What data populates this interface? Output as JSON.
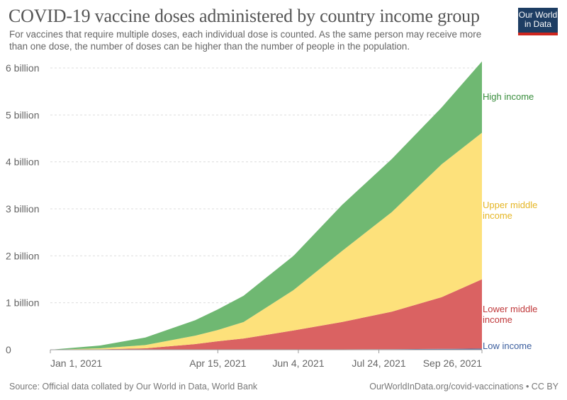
{
  "header": {
    "title": "COVID-19 vaccine doses administered by country income group",
    "subtitle": "For vaccines that require multiple doses, each individual dose is counted. As the same person may receive more than one dose, the number of doses can be higher than the number of people in the population.",
    "logo_text": "Our World in Data"
  },
  "footer": {
    "source": "Source: Official data collated by Our World in Data, World Bank",
    "credit": "OurWorldInData.org/covid-vaccinations • CC BY"
  },
  "chart_data": {
    "type": "area",
    "stacked": true,
    "title": "COVID-19 vaccine doses administered by country income group",
    "x": [
      "2021-01-01",
      "2021-02-01",
      "2021-03-01",
      "2021-04-01",
      "2021-04-15",
      "2021-05-01",
      "2021-06-01",
      "2021-07-01",
      "2021-08-01",
      "2021-09-01",
      "2021-09-26"
    ],
    "xlim": [
      "2021-01-01",
      "2021-09-26"
    ],
    "x_ticks": [
      {
        "date": "2021-01-01",
        "label": "Jan 1, 2021"
      },
      {
        "date": "2021-04-15",
        "label": "Apr 15, 2021"
      },
      {
        "date": "2021-06-04",
        "label": "Jun 4, 2021"
      },
      {
        "date": "2021-07-24",
        "label": "Jul 24, 2021"
      },
      {
        "date": "2021-09-26",
        "label": "Sep 26, 2021"
      }
    ],
    "ylim": [
      0,
      6
    ],
    "y_unit": "billion",
    "y_ticks": [
      {
        "value": 0,
        "label": "0"
      },
      {
        "value": 1,
        "label": "1 billion"
      },
      {
        "value": 2,
        "label": "2 billion"
      },
      {
        "value": 3,
        "label": "3 billion"
      },
      {
        "value": 4,
        "label": "4 billion"
      },
      {
        "value": 5,
        "label": "5 billion"
      },
      {
        "value": 6,
        "label": "6 billion"
      }
    ],
    "grid": true,
    "legend": "right (inline labels)",
    "series": [
      {
        "name": "Low income",
        "color": "#4a6ea9",
        "label_color": "#3b5e9e",
        "values": [
          0,
          0,
          0,
          0.002,
          0.003,
          0.004,
          0.006,
          0.008,
          0.012,
          0.018,
          0.025
        ]
      },
      {
        "name": "Lower middle income",
        "color": "#da6262",
        "label_color": "#c0393b",
        "values": [
          0,
          0.01,
          0.03,
          0.118,
          0.177,
          0.236,
          0.404,
          0.582,
          0.798,
          1.102,
          1.475
        ]
      },
      {
        "name": "Upper middle income",
        "color": "#fde17b",
        "label_color": "#e5b625",
        "values": [
          0,
          0.02,
          0.07,
          0.18,
          0.24,
          0.35,
          0.86,
          1.51,
          2.12,
          2.83,
          3.12
        ]
      },
      {
        "name": "High income",
        "color": "#6fb872",
        "label_color": "#3a8e3e",
        "values": [
          0,
          0.06,
          0.16,
          0.33,
          0.44,
          0.56,
          0.73,
          0.98,
          1.13,
          1.21,
          1.52
        ]
      }
    ],
    "series_labels": [
      {
        "lines": [
          "High income"
        ]
      },
      {
        "lines": [
          "Upper middle",
          "income"
        ]
      },
      {
        "lines": [
          "Lower middle",
          "income"
        ]
      },
      {
        "lines": [
          "Low income"
        ]
      }
    ]
  }
}
